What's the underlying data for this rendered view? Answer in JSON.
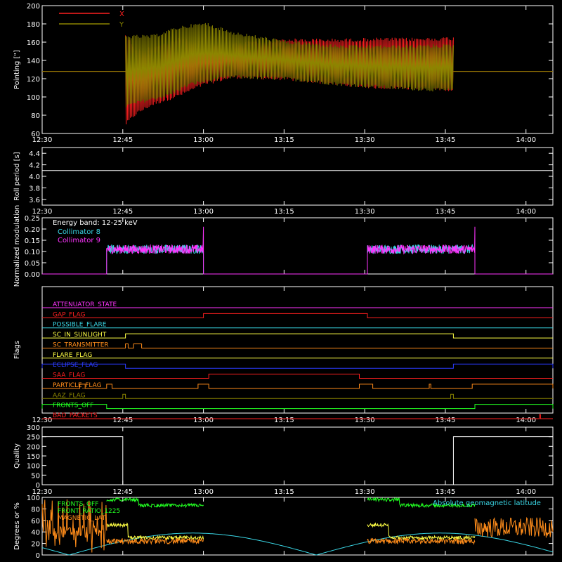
{
  "colors": {
    "background": "#000000",
    "axis": "#ffffff",
    "red": "#ff2020",
    "olive": "#8c8600",
    "cyan": "#3ad7e6",
    "magenta": "#ff33ff",
    "green": "#22ff22",
    "yellow": "#ffff44",
    "orange": "#ff8c1a",
    "blue": "#2b3bff",
    "white": "#ffffff"
  },
  "time_ticks": [
    "12:30",
    "12:45",
    "13:00",
    "13:15",
    "13:30",
    "13:45",
    "14:00"
  ],
  "chart_data": [
    {
      "type": "line",
      "panel": "pointing",
      "ylabel": "Pointing [\"]",
      "ylim": [
        60,
        200
      ],
      "yticks": [
        60,
        80,
        100,
        120,
        140,
        160,
        180,
        200
      ],
      "xlim": [
        "12:30",
        "14:05"
      ],
      "legend": [
        "X",
        "Y"
      ],
      "series": [
        {
          "name": "X",
          "color_key": "red",
          "kind": "envelope",
          "start": "12:45.5",
          "end": "13:46.5",
          "upper": [
            [
              0,
              170
            ],
            [
              2,
              152
            ],
            [
              5,
              156
            ],
            [
              10,
              165
            ],
            [
              15,
              160
            ],
            [
              20,
              160
            ],
            [
              30,
              164
            ],
            [
              40,
              164
            ],
            [
              46,
              165
            ],
            [
              50,
              165
            ],
            [
              55,
              165
            ],
            [
              61,
              166
            ]
          ],
          "lower": [
            [
              0,
              68
            ],
            [
              2,
              80
            ],
            [
              5,
              90
            ],
            [
              10,
              100
            ],
            [
              15,
              113
            ],
            [
              20,
              120
            ],
            [
              30,
              118
            ],
            [
              40,
              112
            ],
            [
              46,
              109
            ],
            [
              50,
              108
            ],
            [
              55,
              108
            ],
            [
              61,
              106
            ]
          ],
          "baseline": 128
        },
        {
          "name": "Y",
          "color_key": "olive",
          "kind": "envelope",
          "start": "12:45.5",
          "end": "13:46.5",
          "upper": [
            [
              0,
              168
            ],
            [
              5,
              168
            ],
            [
              10,
              178
            ],
            [
              15,
              182
            ],
            [
              20,
              172
            ],
            [
              30,
              162
            ],
            [
              40,
              157
            ],
            [
              50,
              157
            ],
            [
              61,
              158
            ]
          ],
          "lower": [
            [
              0,
              88
            ],
            [
              3,
              93
            ],
            [
              8,
              100
            ],
            [
              12,
              112
            ],
            [
              20,
              120
            ],
            [
              30,
              118
            ],
            [
              40,
              112
            ],
            [
              50,
              108
            ],
            [
              61,
              105
            ]
          ],
          "baseline": 128
        }
      ]
    },
    {
      "type": "line",
      "panel": "roll",
      "ylabel": "Roll period [s]",
      "ylim": [
        3.5,
        4.5
      ],
      "yticks": [
        3.6,
        3.8,
        4.0,
        4.2,
        4.4
      ],
      "series": [
        {
          "name": "roll period",
          "color_key": "white",
          "constant": 4.1
        }
      ]
    },
    {
      "type": "line",
      "panel": "modulation",
      "ylabel": "Normalized modulation",
      "ylim": [
        0,
        0.25
      ],
      "yticks": [
        0.0,
        0.05,
        0.1,
        0.15,
        0.2,
        0.25
      ],
      "annotation": "Energy band: 12-25 keV",
      "legend": [
        "Collimator 8",
        "Collimator 9"
      ],
      "series": [
        {
          "name": "Collimator 8",
          "color_key": "cyan",
          "segments": [
            [
              "12:42",
              "13:00"
            ],
            [
              "13:30.5",
              "13:50.5"
            ]
          ],
          "mean": 0.11,
          "noise": 0.02
        },
        {
          "name": "Collimator 9",
          "color_key": "magenta",
          "segments": [
            [
              "12:42",
              "13:00"
            ],
            [
              "13:30.5",
              "13:50.5"
            ]
          ],
          "mean": 0.11,
          "noise": 0.02
        }
      ]
    },
    {
      "type": "line",
      "panel": "flags",
      "ylabel": "Flags",
      "flags": [
        {
          "name": "ATTENUATOR_STATE",
          "color_key": "magenta",
          "transitions": []
        },
        {
          "name": "GAP_FLAG",
          "color_key": "red",
          "transitions": [
            [
              "13:00",
              "13:30.5"
            ]
          ]
        },
        {
          "name": "POSSIBLE_FLARE",
          "color_key": "cyan",
          "transitions": []
        },
        {
          "name": "SC_IN_SUNLIGHT",
          "color_key": "yellow",
          "transitions": [
            [
              "12:45.5",
              "13:46.5"
            ]
          ]
        },
        {
          "name": "SC_TRANSMITTER",
          "color_key": "orange",
          "transitions": [
            [
              "12:45.5",
              "12:46"
            ],
            [
              "12:47",
              "12:48.5"
            ]
          ]
        },
        {
          "name": "FLARE_FLAG",
          "color_key": "yellow",
          "transitions": []
        },
        {
          "name": "ECLIPSE_FLAG",
          "color_key": "blue",
          "transitions": [
            [
              "12:30",
              "12:45.5"
            ],
            [
              "13:46.5",
              "14:05"
            ]
          ]
        },
        {
          "name": "SAA_FLAG",
          "color_key": "red",
          "transitions": [
            [
              "13:01",
              "13:29"
            ]
          ]
        },
        {
          "name": "PARTICLE_FLAG",
          "color_key": "orange",
          "transitions": [
            [
              "12:37",
              "12:38"
            ],
            [
              "12:42",
              "12:43"
            ],
            [
              "12:59",
              "13:01"
            ],
            [
              "13:29",
              "13:31.5"
            ],
            [
              "13:42",
              "13:42.3"
            ],
            [
              "13:50",
              "14:05"
            ]
          ]
        },
        {
          "name": "AAZ_FLAG",
          "color_key": "olive",
          "transitions": [
            [
              "12:45",
              "12:45.5"
            ],
            [
              "13:46",
              "13:46.5"
            ]
          ]
        },
        {
          "name": "FRONTS_OFF",
          "color_key": "green",
          "transitions": [
            [
              "12:30",
              "12:42"
            ],
            [
              "13:50.5",
              "14:05"
            ]
          ]
        },
        {
          "name": "BAD_PACKETS",
          "color_key": "red",
          "transitions": [
            [
              "14:02.5",
              "14:02.7"
            ]
          ]
        }
      ]
    },
    {
      "type": "line",
      "panel": "quality",
      "ylabel": "Quality",
      "ylim": [
        0,
        300
      ],
      "yticks": [
        0,
        50,
        100,
        150,
        200,
        250,
        300
      ],
      "series": [
        {
          "name": "quality",
          "color_key": "white",
          "high": 250,
          "segments_high": [
            [
              "12:30",
              "12:45"
            ],
            [
              "13:46.5",
              "14:05"
            ]
          ]
        }
      ]
    },
    {
      "type": "line",
      "panel": "geomag",
      "ylabel": "Degrees or %",
      "ylim": [
        0,
        100
      ],
      "yticks": [
        0,
        20,
        40,
        60,
        80,
        100
      ],
      "legend": [
        "FRONTS_OFF",
        "FRONT_RATIO_1225",
        "MAGNETIC_LAT"
      ],
      "annotation": "Absolute geomagnetic latitude",
      "series": [
        {
          "name": "Absolute geomagnetic latitude",
          "color_key": "cyan"
        },
        {
          "name": "FRONTS_OFF",
          "color_key": "green"
        },
        {
          "name": "FRONT_RATIO_1225",
          "color_key": "yellow"
        },
        {
          "name": "MAGNETIC_LAT",
          "color_key": "orange"
        }
      ]
    }
  ]
}
